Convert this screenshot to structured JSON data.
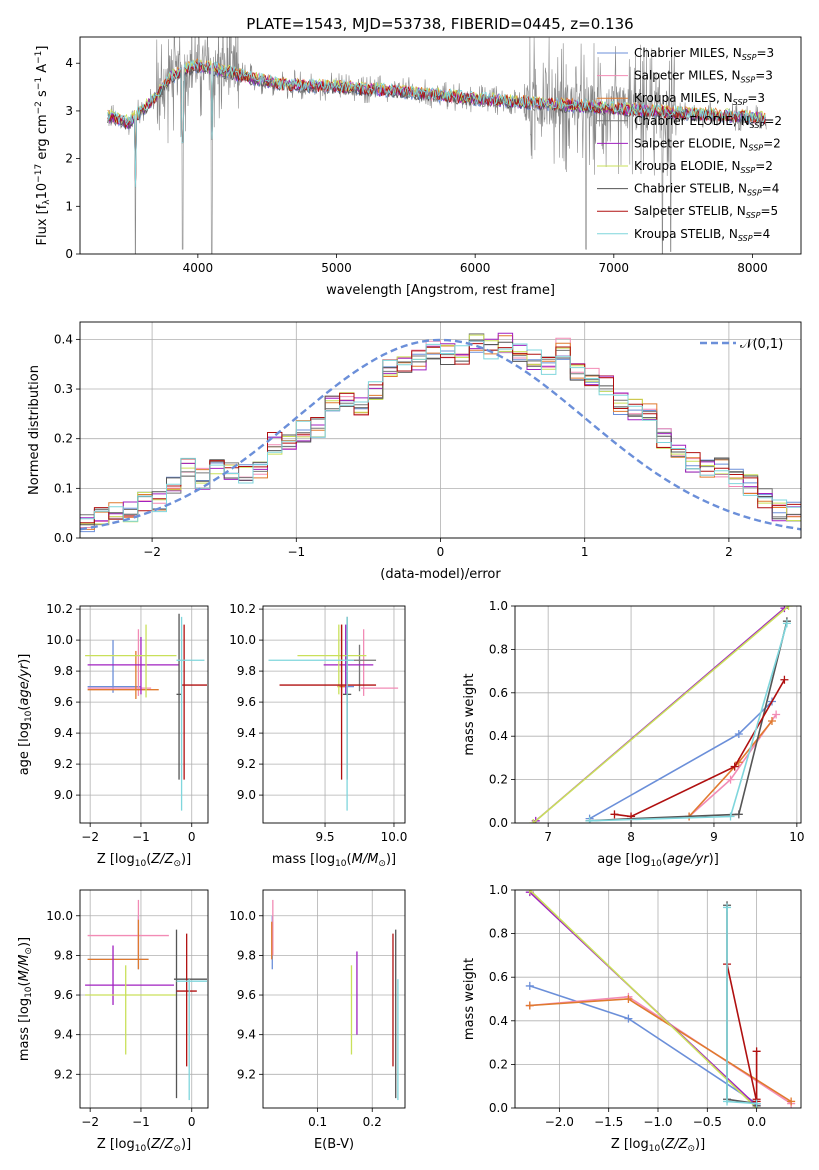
{
  "figure_title": "PLATE=1543, MJD=53738, FIBERID=0445, z=0.136",
  "colors": {
    "Chabrier MILES": "#6b8fd9",
    "Salpeter MILES": "#f28bb5",
    "Kroupa MILES": "#e07a2e",
    "Chabrier ELODIE": "#777777",
    "Salpeter ELODIE": "#a020c0",
    "Kroupa ELODIE": "#c9e05a",
    "Chabrier STELIB": "#555555",
    "Salpeter STELIB": "#b01010",
    "Kroupa STELIB": "#7fd6dc",
    "normal_curve": "#6b8fd9",
    "grid": "#b0b0b0"
  },
  "chart_data": [
    {
      "type": "line",
      "panel": "spectrum",
      "xlabel": "wavelength [Angstrom, rest frame]",
      "ylabel": "Flux [f_λ10^-17 erg cm^-2 s^-1 A^-1]",
      "xlim": [
        3150,
        8350
      ],
      "ylim": [
        0,
        4.55
      ],
      "xticks": [
        4000,
        5000,
        6000,
        7000,
        8000
      ],
      "yticks": [
        0,
        1,
        2,
        3,
        4
      ],
      "grid": false,
      "legend_position": "top-right",
      "legend": [
        {
          "label": "Chabrier MILES",
          "nssp": "3"
        },
        {
          "label": "Salpeter MILES",
          "nssp": "3"
        },
        {
          "label": "Kroupa MILES",
          "nssp": "3"
        },
        {
          "label": "Chabrier ELODIE",
          "nssp": "2"
        },
        {
          "label": "Salpeter ELODIE",
          "nssp": "2"
        },
        {
          "label": "Kroupa ELODIE",
          "nssp": "2"
        },
        {
          "label": "Chabrier STELIB",
          "nssp": "4"
        },
        {
          "label": "Salpeter STELIB",
          "nssp": "5"
        },
        {
          "label": "Kroupa STELIB",
          "nssp": "4"
        }
      ],
      "continuum_points": [
        [
          3350,
          2.9
        ],
        [
          3500,
          2.75
        ],
        [
          3700,
          3.3
        ],
        [
          3800,
          3.7
        ],
        [
          3900,
          3.85
        ],
        [
          4000,
          3.95
        ],
        [
          4100,
          3.9
        ],
        [
          4300,
          3.75
        ],
        [
          4600,
          3.55
        ],
        [
          5000,
          3.5
        ],
        [
          5500,
          3.4
        ],
        [
          6000,
          3.25
        ],
        [
          6500,
          3.15
        ],
        [
          7000,
          3.05
        ],
        [
          7500,
          2.95
        ],
        [
          8100,
          2.85
        ]
      ],
      "absorption_features": [
        [
          3550,
          0.0
        ],
        [
          3890,
          0.1
        ],
        [
          4100,
          0.0
        ],
        [
          6400,
          2.5
        ],
        [
          6800,
          0.1
        ],
        [
          7350,
          0.0
        ],
        [
          7410,
          0.05
        ]
      ],
      "noise_ranges": [
        [
          3700,
          4300
        ],
        [
          6350,
          7450
        ]
      ]
    },
    {
      "type": "line",
      "panel": "residual_histogram",
      "xlabel": "(data-model)/error",
      "ylabel": "Normed distribution",
      "xlim": [
        -2.5,
        2.5
      ],
      "ylim": [
        0,
        0.435
      ],
      "xticks": [
        -2,
        -1,
        0,
        1,
        2
      ],
      "yticks": [
        0.0,
        0.1,
        0.2,
        0.3,
        0.4
      ],
      "grid": true,
      "legend_position": "top-right",
      "normal_curve_label": "𝒩(0,1)",
      "bin_edges_start": -2.5,
      "bin_width": 0.1,
      "base_histogram": [
        0.03,
        0.04,
        0.06,
        0.055,
        0.07,
        0.075,
        0.1,
        0.14,
        0.12,
        0.14,
        0.135,
        0.13,
        0.14,
        0.19,
        0.2,
        0.215,
        0.225,
        0.265,
        0.28,
        0.27,
        0.3,
        0.34,
        0.355,
        0.36,
        0.375,
        0.37,
        0.365,
        0.39,
        0.38,
        0.39,
        0.37,
        0.36,
        0.35,
        0.38,
        0.33,
        0.32,
        0.31,
        0.27,
        0.26,
        0.25,
        0.2,
        0.165,
        0.15,
        0.135,
        0.14,
        0.12,
        0.105,
        0.08,
        0.055,
        0.055,
        0.06,
        0.05,
        0.045,
        0.04,
        0.035
      ]
    },
    {
      "type": "scatter",
      "panel": "age_vs_Z",
      "xlabel": "Z [log10(Z/Z☉)]",
      "ylabel": "age [log10(age/yr)]",
      "xlim": [
        -2.2,
        0.32
      ],
      "ylim": [
        8.82,
        10.22
      ],
      "xticks": [
        -2,
        -1,
        0
      ],
      "yticks": [
        9.0,
        9.2,
        9.4,
        9.6,
        9.8,
        10.0,
        10.2
      ],
      "grid": true,
      "crosses": [
        {
          "series": "Chabrier MILES",
          "x": -1.55,
          "xerr": [
            0.5,
            0.55
          ],
          "y": 9.7,
          "yerr": [
            0.04,
            0.3
          ]
        },
        {
          "series": "Salpeter MILES",
          "x": -1.05,
          "xerr": [
            1.0,
            0.25
          ],
          "y": 9.69,
          "yerr": [
            0.05,
            0.38
          ]
        },
        {
          "series": "Kroupa MILES",
          "x": -1.1,
          "xerr": [
            0.95,
            0.45
          ],
          "y": 9.68,
          "yerr": [
            0.06,
            0.25
          ]
        },
        {
          "series": "Salpeter ELODIE",
          "x": -1.0,
          "xerr": [
            1.05,
            0.75
          ],
          "y": 9.84,
          "yerr": [
            0.19,
            0.18
          ]
        },
        {
          "series": "Kroupa ELODIE",
          "x": -0.9,
          "xerr": [
            1.2,
            0.6
          ],
          "y": 9.9,
          "yerr": [
            0.27,
            0.2
          ]
        },
        {
          "series": "Chabrier STELIB",
          "x": -0.25,
          "xerr": [
            0.05,
            0.05
          ],
          "y": 9.65,
          "yerr": [
            0.55,
            0.52
          ]
        },
        {
          "series": "Salpeter STELIB",
          "x": -0.15,
          "xerr": [
            0.05,
            0.45
          ],
          "y": 9.71,
          "yerr": [
            0.61,
            0.39
          ]
        },
        {
          "series": "Kroupa STELIB",
          "x": -0.2,
          "xerr": [
            0.1,
            0.45
          ],
          "y": 9.87,
          "yerr": [
            0.97,
            0.28
          ]
        }
      ]
    },
    {
      "type": "scatter",
      "panel": "age_vs_mass",
      "xlabel": "mass [log10(M/M☉)]",
      "ylabel": "",
      "xlim": [
        9.05,
        10.08
      ],
      "ylim": [
        8.82,
        10.22
      ],
      "xticks": [
        9.5,
        10.0
      ],
      "yticks": [
        9.0,
        9.2,
        9.4,
        9.6,
        9.8,
        10.0,
        10.2
      ],
      "grid": true,
      "crosses": [
        {
          "series": "Chabrier MILES",
          "x": 9.66,
          "xerr": [
            0.05,
            0.05
          ],
          "y": 9.7,
          "yerr": [
            0.06,
            0.3
          ]
        },
        {
          "series": "Salpeter MILES",
          "x": 9.78,
          "xerr": [
            0.02,
            0.25
          ],
          "y": 9.69,
          "yerr": [
            0.05,
            0.38
          ]
        },
        {
          "series": "Kroupa MILES",
          "x": 9.62,
          "xerr": [
            0.03,
            0.03
          ],
          "y": 9.7,
          "yerr": [
            0.06,
            0.4
          ]
        },
        {
          "series": "Chabrier ELODIE",
          "x": 9.75,
          "xerr": [
            0.1,
            0.12
          ],
          "y": 9.87,
          "yerr": [
            0.2,
            0.1
          ]
        },
        {
          "series": "Salpeter ELODIE",
          "x": 9.65,
          "xerr": [
            0.16,
            0.2
          ],
          "y": 9.84,
          "yerr": [
            0.19,
            0.26
          ]
        },
        {
          "series": "Kroupa ELODIE",
          "x": 9.6,
          "xerr": [
            0.3,
            0.2
          ],
          "y": 9.9,
          "yerr": [
            0.25,
            0.2
          ]
        },
        {
          "series": "Chabrier STELIB",
          "x": 9.66,
          "xerr": [
            0.03,
            0.03
          ],
          "y": 9.65,
          "yerr": [
            0.55,
            0.5
          ]
        },
        {
          "series": "Salpeter STELIB",
          "x": 9.62,
          "xerr": [
            0.45,
            0.25
          ],
          "y": 9.71,
          "yerr": [
            0.61,
            0.39
          ]
        },
        {
          "series": "Kroupa STELIB",
          "x": 9.66,
          "xerr": [
            0.57,
            0.05
          ],
          "y": 9.87,
          "yerr": [
            0.97,
            0.28
          ]
        }
      ]
    },
    {
      "type": "line",
      "panel": "mass_weight_vs_age",
      "xlabel": "age [log10(age/yr)]",
      "ylabel": "mass weight",
      "xlim": [
        6.6,
        10.05
      ],
      "ylim": [
        0,
        1.0
      ],
      "xticks": [
        7,
        8,
        9,
        10
      ],
      "yticks": [
        0.0,
        0.2,
        0.4,
        0.6,
        0.8,
        1.0
      ],
      "grid": true,
      "series": [
        {
          "name": "Chabrier MILES",
          "x": [
            7.5,
            9.3,
            9.7
          ],
          "y": [
            0.02,
            0.41,
            0.56
          ]
        },
        {
          "name": "Salpeter MILES",
          "x": [
            8.7,
            9.2,
            9.75
          ],
          "y": [
            0.03,
            0.2,
            0.5
          ]
        },
        {
          "name": "Kroupa MILES",
          "x": [
            8.7,
            9.3,
            9.7
          ],
          "y": [
            0.03,
            0.28,
            0.47
          ]
        },
        {
          "name": "Salpeter ELODIE",
          "x": [
            6.85,
            9.85
          ],
          "y": [
            0.01,
            0.99
          ]
        },
        {
          "name": "Kroupa ELODIE",
          "x": [
            6.82,
            9.9
          ],
          "y": [
            0.0,
            1.0
          ]
        },
        {
          "name": "Chabrier STELIB",
          "x": [
            7.5,
            8.0,
            9.3,
            9.88
          ],
          "y": [
            0.01,
            0.02,
            0.04,
            0.93
          ]
        },
        {
          "name": "Salpeter STELIB",
          "x": [
            7.8,
            8.0,
            9.25,
            9.85
          ],
          "y": [
            0.04,
            0.03,
            0.26,
            0.66
          ]
        },
        {
          "name": "Kroupa STELIB",
          "x": [
            7.5,
            9.2,
            9.88
          ],
          "y": [
            0.01,
            0.03,
            0.92
          ]
        }
      ]
    },
    {
      "type": "scatter",
      "panel": "mass_vs_Z",
      "xlabel": "Z [log10(Z/Z☉)]",
      "ylabel": "mass [log10(M/M☉)]",
      "xlim": [
        -2.2,
        0.32
      ],
      "ylim": [
        9.03,
        10.13
      ],
      "xticks": [
        -2,
        -1,
        0
      ],
      "yticks": [
        9.2,
        9.4,
        9.6,
        9.8,
        10.0
      ],
      "grid": true,
      "crosses": [
        {
          "series": "Chabrier MILES",
          "x": -1.05,
          "xerr": [
            1.0,
            0.2
          ],
          "y": 9.78,
          "yerr": [
            0.05,
            0.22
          ]
        },
        {
          "series": "Salpeter MILES",
          "x": -1.05,
          "xerr": [
            1.0,
            0.6
          ],
          "y": 9.9,
          "yerr": [
            0.1,
            0.18
          ]
        },
        {
          "series": "Kroupa MILES",
          "x": -1.05,
          "xerr": [
            1.0,
            0.2
          ],
          "y": 9.78,
          "yerr": [
            0.05,
            0.2
          ]
        },
        {
          "series": "Salpeter ELODIE",
          "x": -1.55,
          "xerr": [
            0.55,
            1.2
          ],
          "y": 9.65,
          "yerr": [
            0.1,
            0.2
          ]
        },
        {
          "series": "Kroupa ELODIE",
          "x": -1.3,
          "xerr": [
            0.8,
            1.0
          ],
          "y": 9.6,
          "yerr": [
            0.3,
            0.15
          ]
        },
        {
          "series": "Chabrier STELIB",
          "x": -0.3,
          "xerr": [
            0.05,
            0.6
          ],
          "y": 9.68,
          "yerr": [
            0.6,
            0.25
          ]
        },
        {
          "series": "Salpeter STELIB",
          "x": -0.1,
          "xerr": [
            0.2,
            0.2
          ],
          "y": 9.62,
          "yerr": [
            0.38,
            0.29
          ]
        },
        {
          "series": "Kroupa STELIB",
          "x": -0.05,
          "xerr": [
            0.25,
            0.35
          ],
          "y": 9.67,
          "yerr": [
            0.6,
            0.01
          ]
        }
      ]
    },
    {
      "type": "scatter",
      "panel": "mass_vs_EBV",
      "xlabel": "E(B-V)",
      "ylabel": "",
      "xlim": [
        0.0,
        0.26
      ],
      "ylim": [
        9.03,
        10.13
      ],
      "xticks": [
        0.1,
        0.2
      ],
      "yticks": [
        9.2,
        9.4,
        9.6,
        9.8,
        10.0
      ],
      "grid": true,
      "crosses": [
        {
          "series": "Chabrier MILES",
          "x": 0.017,
          "y": 9.78,
          "yerr": [
            0.05,
            0.22
          ]
        },
        {
          "series": "Salpeter MILES",
          "x": 0.018,
          "y": 9.9,
          "yerr": [
            0.1,
            0.18
          ]
        },
        {
          "series": "Kroupa MILES",
          "x": 0.016,
          "y": 9.85,
          "yerr": [
            0.07,
            0.12
          ]
        },
        {
          "series": "Salpeter ELODIE",
          "x": 0.172,
          "y": 9.65,
          "yerr": [
            0.25,
            0.17
          ]
        },
        {
          "series": "Kroupa ELODIE",
          "x": 0.162,
          "y": 9.6,
          "yerr": [
            0.3,
            0.15
          ]
        },
        {
          "series": "Chabrier STELIB",
          "x": 0.243,
          "y": 9.68,
          "yerr": [
            0.6,
            0.25
          ]
        },
        {
          "series": "Salpeter STELIB",
          "x": 0.238,
          "y": 9.62,
          "yerr": [
            0.38,
            0.29
          ]
        },
        {
          "series": "Kroupa STELIB",
          "x": 0.247,
          "y": 9.67,
          "yerr": [
            0.6,
            0.01
          ]
        }
      ]
    },
    {
      "type": "line",
      "panel": "mass_weight_vs_Z",
      "xlabel": "Z [log10(Z/Z☉)]",
      "ylabel": "mass weight",
      "xlim": [
        -2.45,
        0.45
      ],
      "ylim": [
        0,
        1.0
      ],
      "xticks": [
        -2.0,
        -1.5,
        -1.0,
        -0.5,
        0.0
      ],
      "yticks": [
        0.0,
        0.2,
        0.4,
        0.6,
        0.8,
        1.0
      ],
      "grid": true,
      "series": [
        {
          "name": "Chabrier MILES",
          "x": [
            -2.3,
            -1.3,
            0.0
          ],
          "y": [
            0.56,
            0.41,
            0.02
          ]
        },
        {
          "name": "Salpeter MILES",
          "x": [
            -2.3,
            -1.3,
            0.35
          ],
          "y": [
            0.47,
            0.51,
            0.02
          ]
        },
        {
          "name": "Kroupa MILES",
          "x": [
            -2.3,
            -1.3,
            0.35
          ],
          "y": [
            0.47,
            0.5,
            0.03
          ]
        },
        {
          "name": "Salpeter ELODIE",
          "x": [
            -2.3,
            0.0
          ],
          "y": [
            0.99,
            0.01
          ]
        },
        {
          "name": "Kroupa ELODIE",
          "x": [
            -2.3,
            0.0
          ],
          "y": [
            1.0,
            0.0
          ]
        },
        {
          "name": "Chabrier STELIB",
          "x": [
            -0.3,
            -0.3,
            0.0,
            0.0
          ],
          "y": [
            0.93,
            0.04,
            0.02,
            0.01
          ]
        },
        {
          "name": "Salpeter STELIB",
          "x": [
            -0.3,
            0.0,
            0.0,
            0.0
          ],
          "y": [
            0.66,
            0.03,
            0.26,
            0.04
          ]
        },
        {
          "name": "Kroupa STELIB",
          "x": [
            -0.3,
            -0.3,
            0.0
          ],
          "y": [
            0.92,
            0.03,
            0.02
          ]
        }
      ]
    }
  ]
}
